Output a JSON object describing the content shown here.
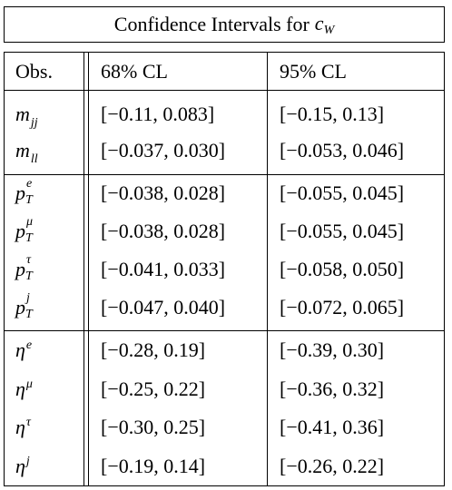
{
  "title": {
    "text": "Confidence Intervals for",
    "var_base": "c",
    "var_sub": "W"
  },
  "headers": {
    "obs": "Obs.",
    "cl68": "68% CL",
    "cl95": "95% CL"
  },
  "rows": [
    {
      "base": "m",
      "sub": "jj",
      "sup": "",
      "cl68": "[−0.11, 0.083]",
      "cl95": "[−0.15, 0.13]"
    },
    {
      "base": "m",
      "sub": "ll",
      "sup": "",
      "cl68": "[−0.037, 0.030]",
      "cl95": "[−0.053, 0.046]"
    },
    {
      "base": "p",
      "sub": "T",
      "sup": "e",
      "cl68": "[−0.038, 0.028]",
      "cl95": "[−0.055, 0.045]"
    },
    {
      "base": "p",
      "sub": "T",
      "sup": "μ",
      "cl68": "[−0.038, 0.028]",
      "cl95": "[−0.055, 0.045]"
    },
    {
      "base": "p",
      "sub": "T",
      "sup": "τ",
      "cl68": "[−0.041, 0.033]",
      "cl95": "[−0.058, 0.050]"
    },
    {
      "base": "p",
      "sub": "T",
      "sup": "j",
      "cl68": "[−0.047, 0.040]",
      "cl95": "[−0.072, 0.065]"
    },
    {
      "base": "η",
      "sub": "",
      "sup": "e",
      "cl68": "[−0.28, 0.19]",
      "cl95": "[−0.39, 0.30]"
    },
    {
      "base": "η",
      "sub": "",
      "sup": "μ",
      "cl68": "[−0.25, 0.22]",
      "cl95": "[−0.36, 0.32]"
    },
    {
      "base": "η",
      "sub": "",
      "sup": "τ",
      "cl68": "[−0.30, 0.25]",
      "cl95": "[−0.41, 0.36]"
    },
    {
      "base": "η",
      "sub": "",
      "sup": "j",
      "cl68": "[−0.19, 0.14]",
      "cl95": "[−0.26, 0.22]"
    }
  ]
}
